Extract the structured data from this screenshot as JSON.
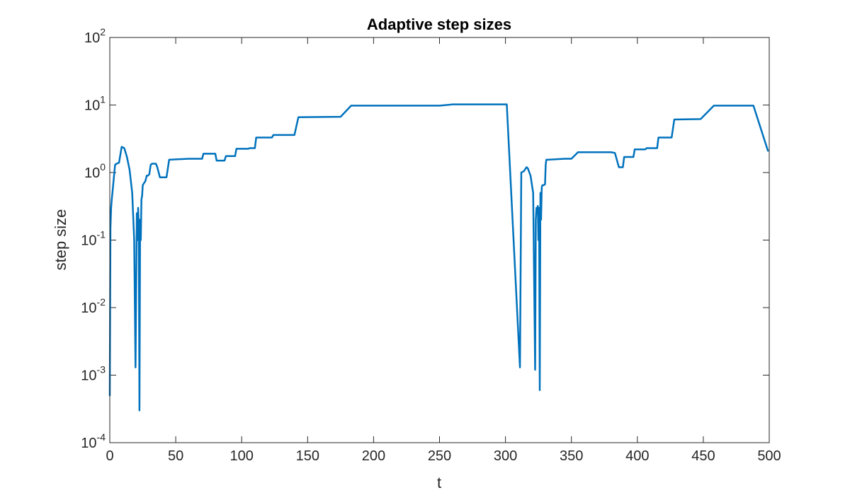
{
  "chart_data": {
    "type": "line",
    "title": "Adaptive step sizes",
    "xlabel": "t",
    "ylabel": "step size",
    "xlim": [
      0,
      500
    ],
    "ylim": [
      0.0001,
      100
    ],
    "yscale": "log",
    "grid": false,
    "box": true,
    "x_ticks": [
      0,
      50,
      100,
      150,
      200,
      250,
      300,
      350,
      400,
      450,
      500
    ],
    "y_ticks": [
      {
        "value": 0.0001,
        "base": "10",
        "exp": "-4"
      },
      {
        "value": 0.001,
        "base": "10",
        "exp": "-3"
      },
      {
        "value": 0.01,
        "base": "10",
        "exp": "-2"
      },
      {
        "value": 0.1,
        "base": "10",
        "exp": "-1"
      },
      {
        "value": 1,
        "base": "10",
        "exp": "0"
      },
      {
        "value": 10,
        "base": "10",
        "exp": "1"
      },
      {
        "value": 100,
        "base": "10",
        "exp": "2"
      }
    ],
    "colors": {
      "line": "#0072BD",
      "axes": "#262626"
    },
    "series": [
      {
        "x": [
          0,
          0.5,
          1.0,
          1.5,
          2.0,
          4.0,
          5.0,
          7.0,
          9.0,
          11.0,
          13.0,
          15.0,
          17.0,
          18.5,
          19.5,
          20.5,
          21.0,
          21.5,
          22.0,
          22.5,
          23.0,
          23.5,
          24.0,
          24.5,
          25.0,
          26.0,
          27.0,
          28.0,
          29.0,
          30.0,
          31.0,
          32.0,
          35.0,
          36.0,
          38.0,
          40.0,
          43.0,
          45.0,
          60.0,
          70.0,
          71.0,
          80.0,
          81.0,
          87.0,
          88.0,
          95.0,
          96.0,
          105.0,
          106.0,
          110.0,
          111.0,
          123.0,
          124.0,
          140.0,
          143.0,
          175.0,
          183.0,
          250.0,
          260.0,
          301.0,
          311.0,
          312.0,
          314.0,
          316.0,
          317.0,
          319.0,
          321.0,
          322.5,
          323.0,
          323.5,
          324.0,
          324.5,
          325.0,
          325.5,
          326.0,
          326.5,
          327.0,
          327.5,
          328.0,
          329.0,
          330.0,
          330.5,
          331.0,
          332.0,
          345.0,
          350.0,
          355.0,
          380.0,
          383.0,
          386.0,
          389.0,
          390.0,
          397.0,
          398.0,
          406.0,
          407.0,
          415.0,
          416.0,
          426.0,
          428.0,
          448.0,
          458.0,
          488.0,
          499.0
        ],
        "y": [
          0.0005,
          0.15,
          0.3,
          0.4,
          0.5,
          1.3,
          1.35,
          1.4,
          2.4,
          2.3,
          1.7,
          1.1,
          0.5,
          0.1,
          0.0013,
          0.25,
          0.1,
          0.3,
          0.15,
          0.0003,
          0.2,
          0.1,
          0.4,
          0.45,
          0.65,
          0.7,
          0.75,
          0.9,
          0.9,
          0.95,
          1.3,
          1.35,
          1.35,
          1.2,
          0.85,
          0.85,
          0.85,
          1.55,
          1.6,
          1.6,
          1.9,
          1.9,
          1.5,
          1.5,
          1.75,
          1.75,
          2.25,
          2.25,
          2.3,
          2.3,
          3.3,
          3.3,
          3.6,
          3.6,
          6.6,
          6.7,
          9.8,
          9.8,
          10.2,
          10.2,
          0.0013,
          1.0,
          1.05,
          1.2,
          1.15,
          0.9,
          0.5,
          0.0012,
          0.2,
          0.3,
          0.25,
          0.32,
          0.1,
          0.3,
          0.0006,
          0.5,
          0.2,
          0.6,
          0.65,
          0.65,
          0.67,
          1.3,
          1.55,
          1.55,
          1.6,
          1.6,
          2.0,
          2.0,
          1.95,
          1.2,
          1.2,
          1.7,
          1.7,
          2.2,
          2.2,
          2.3,
          2.3,
          3.3,
          3.3,
          6.1,
          6.2,
          9.8,
          9.8,
          2.1
        ]
      }
    ]
  }
}
